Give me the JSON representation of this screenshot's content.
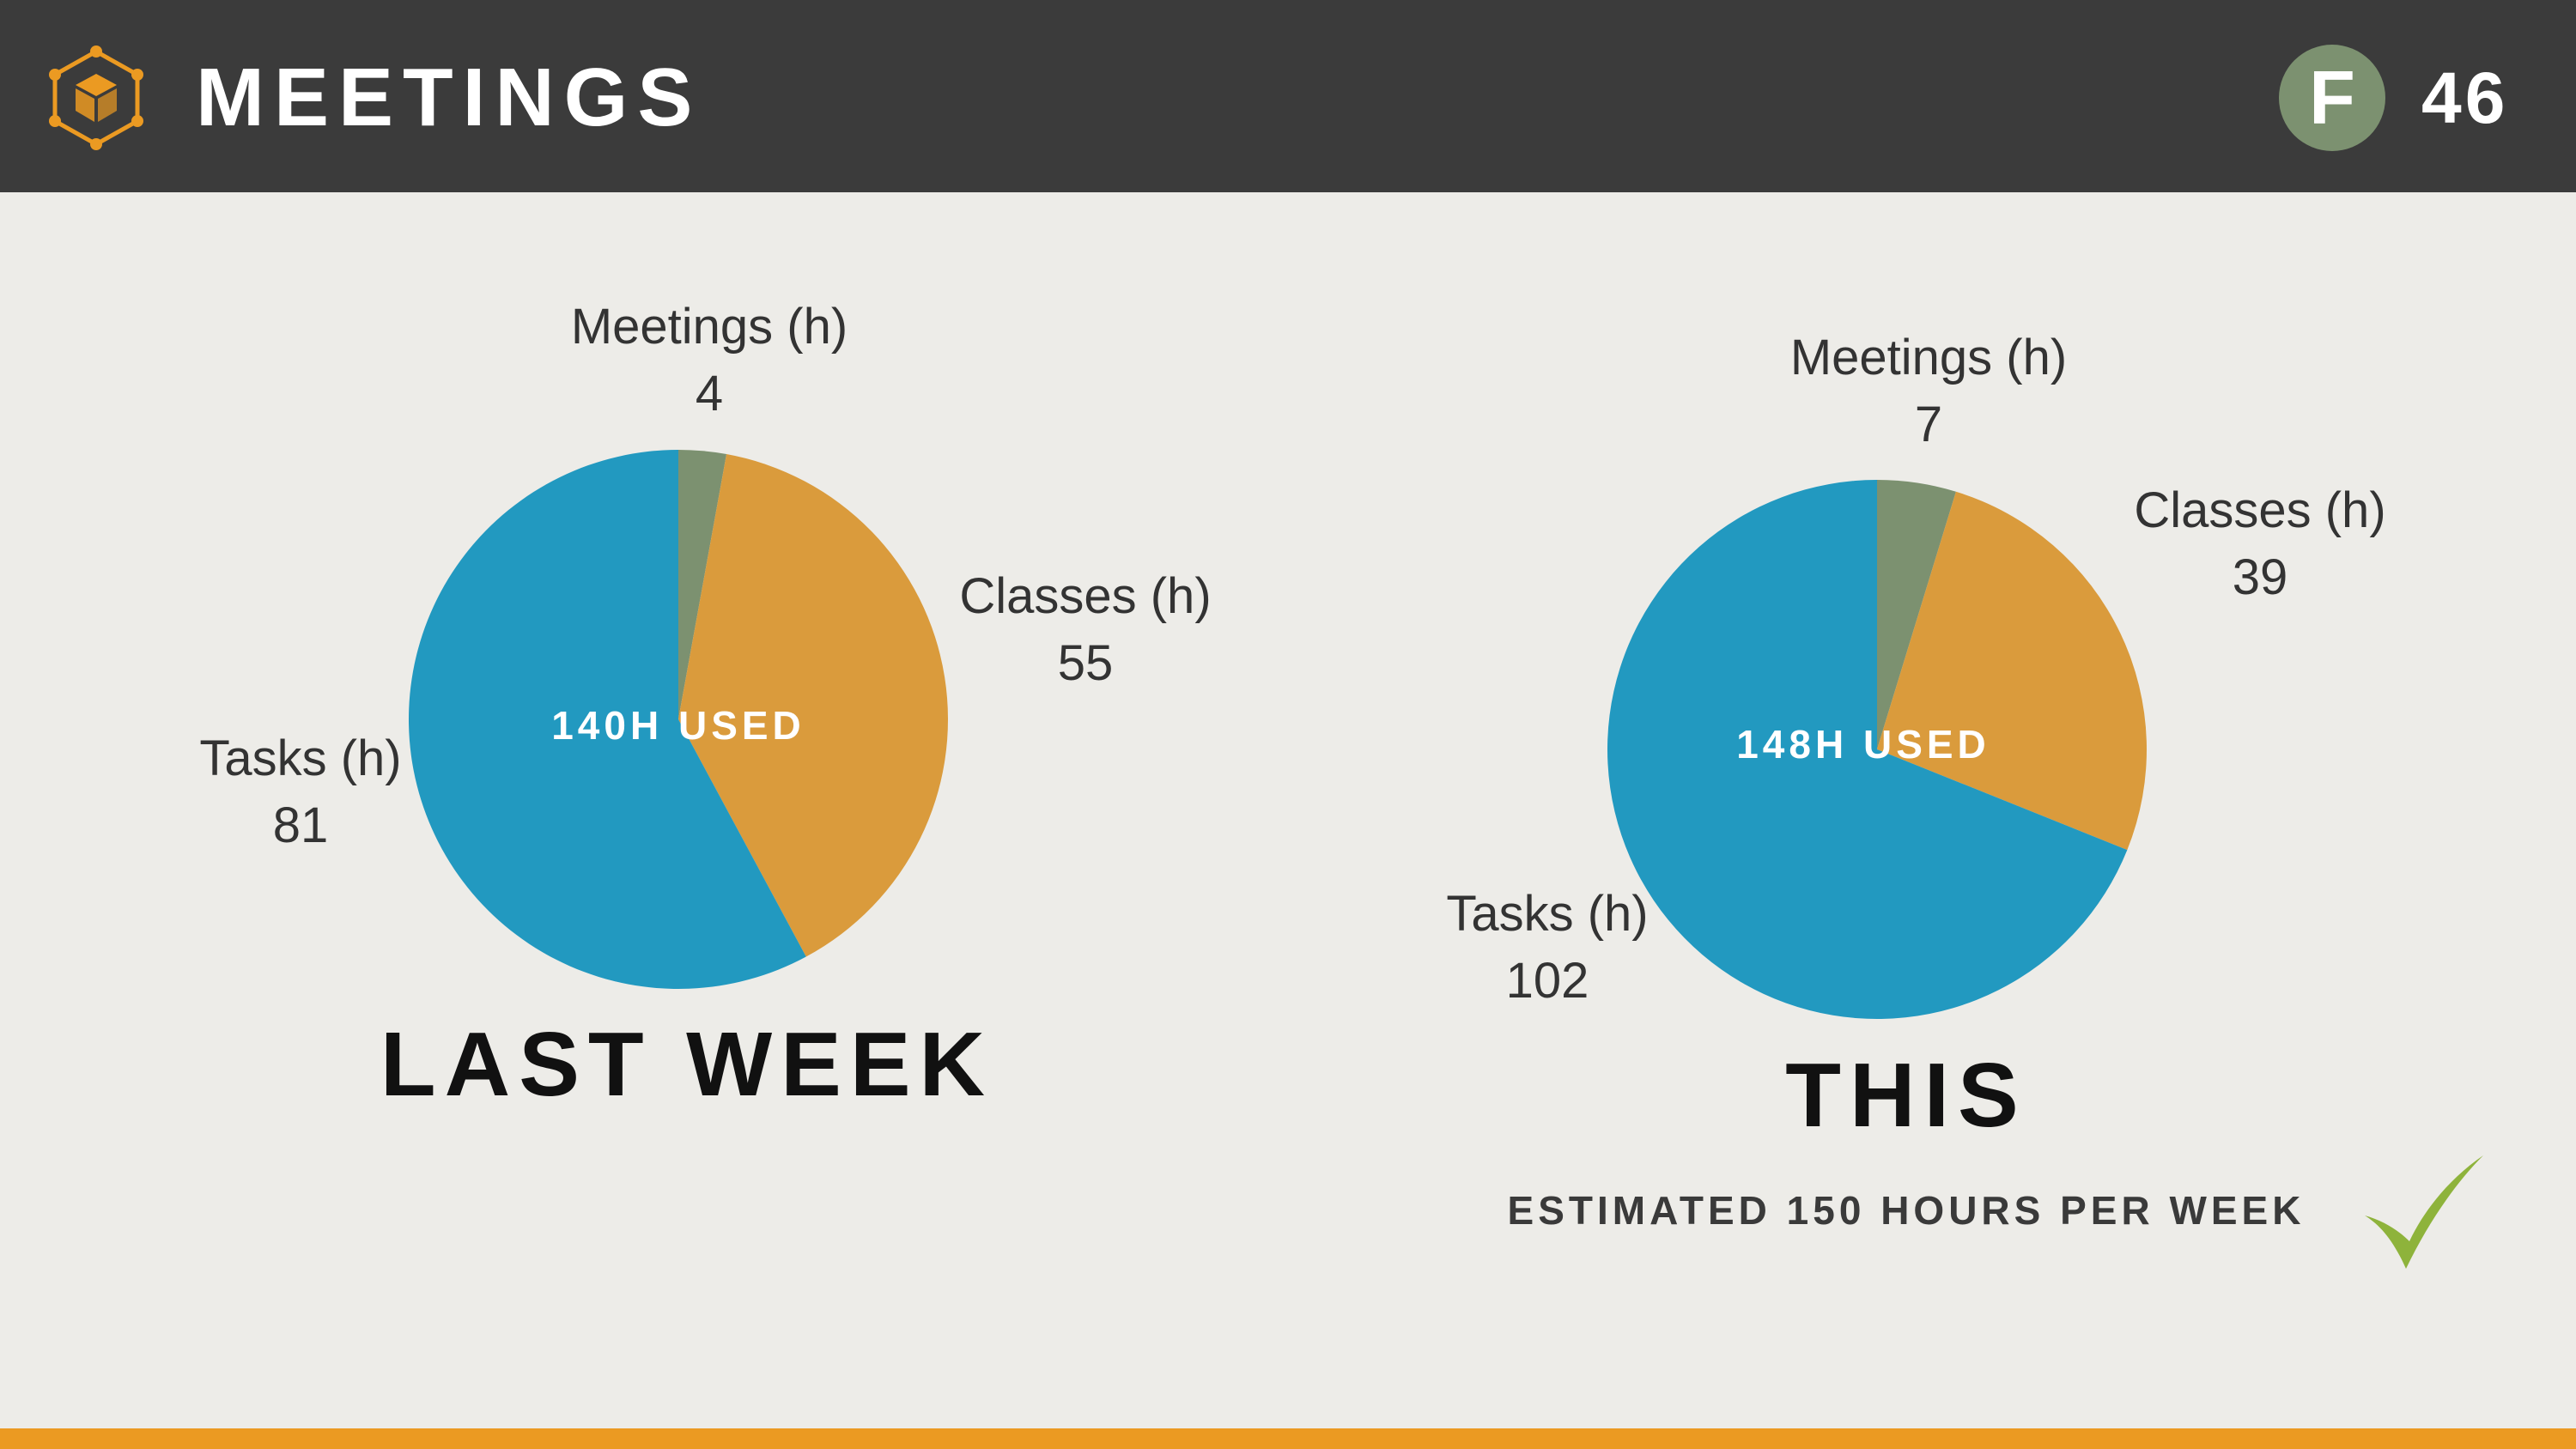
{
  "header": {
    "title": "MEETINGS",
    "badge_letter": "F",
    "page_number": "46"
  },
  "icons": {
    "logo": "hexagon-cube-icon",
    "check": "checkmark-icon"
  },
  "colors": {
    "header_bg": "#3b3b3b",
    "background": "#edece8",
    "meetings": "#7c9170",
    "classes": "#da9b3c",
    "tasks": "#2299c0",
    "accent": "#eb9a22",
    "check": "#8eb33b"
  },
  "chart_data": [
    {
      "type": "pie",
      "title": "LAST WEEK",
      "center_label": "140H USED",
      "slices": [
        {
          "label": "Meetings (h)",
          "value": 4
        },
        {
          "label": "Classes (h)",
          "value": 55
        },
        {
          "label": "Tasks (h)",
          "value": 81
        }
      ]
    },
    {
      "type": "pie",
      "title": "THIS",
      "center_label": "148H USED",
      "slices": [
        {
          "label": "Meetings (h)",
          "value": 7
        },
        {
          "label": "Classes (h)",
          "value": 39
        },
        {
          "label": "Tasks (h)",
          "value": 102
        }
      ]
    }
  ],
  "footer": {
    "note": "ESTIMATED 150 HOURS PER WEEK"
  }
}
